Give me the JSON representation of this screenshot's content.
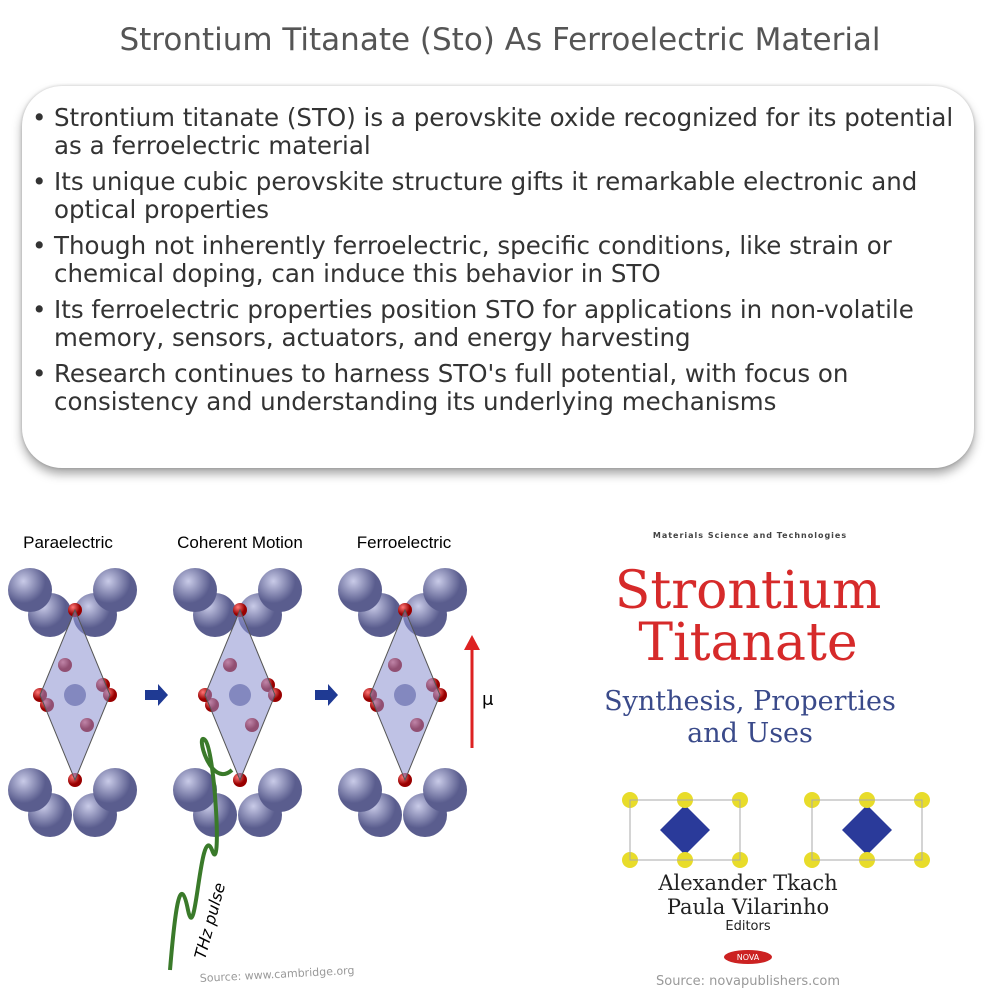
{
  "header": {
    "title": "Strontium Titanate (Sto) As Ferroelectric Material"
  },
  "bullets": [
    "Strontium titanate (STO) is a perovskite oxide recognized for its potential as a ferroelectric material",
    "Its unique cubic perovskite structure gifts it remarkable electronic and optical properties",
    "Though not inherently ferroelectric, specific conditions, like strain or chemical doping, can induce this behavior in STO",
    "Its ferroelectric properties position STO for applications in non-volatile memory, sensors, actuators, and energy harvesting",
    "Research continues to harness STO's full potential, with focus on consistency and understanding its underlying mechanisms"
  ],
  "figure": {
    "labels": [
      "Paraelectric",
      "Coherent Motion",
      "Ferroelectric"
    ],
    "mu": "μ",
    "pulse": "THz pulse",
    "source": "Source: www.cambridge.org"
  },
  "book": {
    "series": "Materials Science and Technologies",
    "title_1": "Strontium",
    "title_2": "Titanate",
    "subtitle_1": "Synthesis, Properties",
    "subtitle_2": "and Uses",
    "editor_1": "Alexander Tkach",
    "editor_2": "Paula Vilarinho",
    "editors": "Editors",
    "publisher": "NOVA",
    "source": "Source: novapublishers.com"
  }
}
